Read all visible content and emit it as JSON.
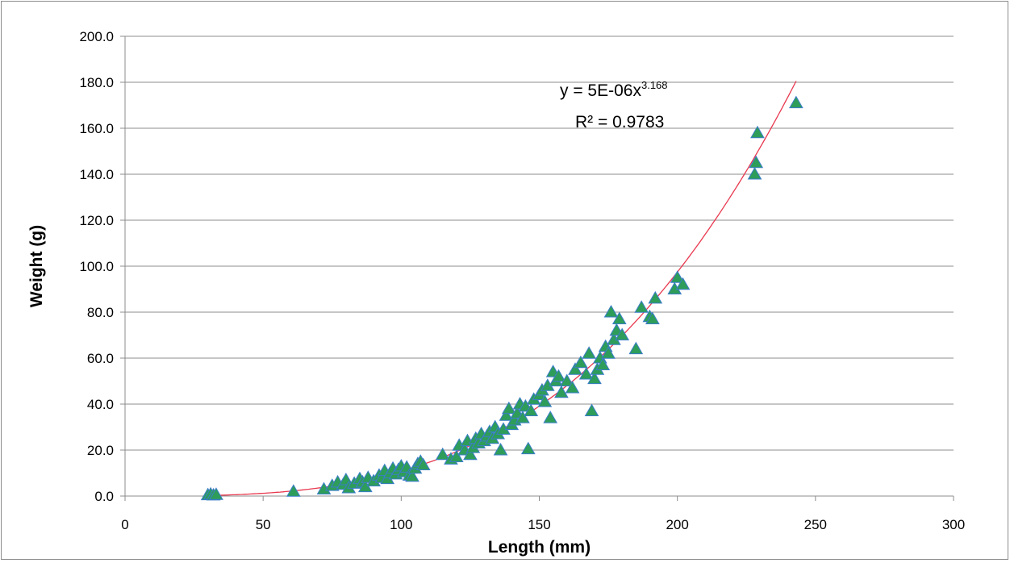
{
  "chart_data": {
    "type": "scatter",
    "title": "",
    "xlabel": "Length (mm)",
    "ylabel": "Weight (g)",
    "xlim": [
      0,
      300
    ],
    "ylim": [
      0,
      200
    ],
    "x_ticks": [
      "0",
      "50",
      "100",
      "150",
      "200",
      "250",
      "300"
    ],
    "y_ticks": [
      "0.0",
      "20.0",
      "40.0",
      "60.0",
      "80.0",
      "100.0",
      "120.0",
      "140.0",
      "160.0",
      "180.0",
      "200.0"
    ],
    "grid": "horizontal",
    "marker": "triangle",
    "colors": {
      "marker_fill": "#2e9d5a",
      "marker_edge": "#3a7dc9",
      "trendline": "#e8384f",
      "grid": "#8c8c8c"
    },
    "trendline": {
      "type": "power",
      "a": 5e-06,
      "b": 3.168,
      "x_range": [
        33,
        243
      ],
      "equation_text": "y = 5E-06x",
      "equation_exponent": "3.168",
      "r2_text": "R² = 0.9783"
    },
    "points": [
      [
        30,
        0.5
      ],
      [
        31,
        0.8
      ],
      [
        32,
        0.4
      ],
      [
        33,
        0.6
      ],
      [
        61,
        2.0
      ],
      [
        72,
        3.0
      ],
      [
        75,
        4.5
      ],
      [
        77,
        6.0
      ],
      [
        79,
        5.0
      ],
      [
        80,
        7.0
      ],
      [
        81,
        3.5
      ],
      [
        83,
        5.5
      ],
      [
        85,
        7.5
      ],
      [
        86,
        6.0
      ],
      [
        87,
        4.0
      ],
      [
        88,
        8.0
      ],
      [
        90,
        6.5
      ],
      [
        92,
        9.0
      ],
      [
        93,
        8.0
      ],
      [
        94,
        11.0
      ],
      [
        95,
        7.5
      ],
      [
        96,
        10.0
      ],
      [
        97,
        12.0
      ],
      [
        98,
        9.5
      ],
      [
        99,
        11.5
      ],
      [
        100,
        13.0
      ],
      [
        101,
        10.5
      ],
      [
        102,
        12.5
      ],
      [
        103,
        9.0
      ],
      [
        104,
        8.5
      ],
      [
        105,
        12.0
      ],
      [
        106,
        14.0
      ],
      [
        107,
        15.0
      ],
      [
        108,
        13.5
      ],
      [
        115,
        18.0
      ],
      [
        118,
        16.0
      ],
      [
        120,
        17.0
      ],
      [
        121,
        22.0
      ],
      [
        123,
        20.0
      ],
      [
        124,
        24.0
      ],
      [
        125,
        18.0
      ],
      [
        126,
        21.0
      ],
      [
        127,
        25.0
      ],
      [
        128,
        23.0
      ],
      [
        129,
        27.0
      ],
      [
        130,
        24.0
      ],
      [
        131,
        26.0
      ],
      [
        132,
        28.0
      ],
      [
        133,
        25.0
      ],
      [
        134,
        30.0
      ],
      [
        135,
        27.0
      ],
      [
        136,
        20.0
      ],
      [
        137,
        29.0
      ],
      [
        138,
        35.0
      ],
      [
        139,
        38.0
      ],
      [
        140,
        31.0
      ],
      [
        141,
        33.0
      ],
      [
        142,
        36.0
      ],
      [
        143,
        40.0
      ],
      [
        144,
        34.0
      ],
      [
        145,
        39.0
      ],
      [
        146,
        20.5
      ],
      [
        147,
        37.0
      ],
      [
        148,
        42.0
      ],
      [
        150,
        44.0
      ],
      [
        151,
        46.0
      ],
      [
        152,
        41.0
      ],
      [
        153,
        48.0
      ],
      [
        154,
        34.0
      ],
      [
        155,
        54.0
      ],
      [
        156,
        50.0
      ],
      [
        157,
        52.0
      ],
      [
        158,
        45.0
      ],
      [
        160,
        50.0
      ],
      [
        162,
        47.0
      ],
      [
        163,
        55.0
      ],
      [
        165,
        58.0
      ],
      [
        167,
        53.0
      ],
      [
        168,
        62.0
      ],
      [
        169,
        37.0
      ],
      [
        170,
        51.0
      ],
      [
        171,
        55.0
      ],
      [
        172,
        60.0
      ],
      [
        173,
        57.0
      ],
      [
        174,
        65.0
      ],
      [
        175,
        62.0
      ],
      [
        176,
        80.0
      ],
      [
        177,
        68.0
      ],
      [
        178,
        72.0
      ],
      [
        179,
        77.0
      ],
      [
        180,
        70.0
      ],
      [
        185,
        64.0
      ],
      [
        187,
        82.0
      ],
      [
        190,
        78.0
      ],
      [
        191,
        77.0
      ],
      [
        192,
        86.0
      ],
      [
        199,
        90.0
      ],
      [
        200,
        95.0
      ],
      [
        202,
        92.0
      ],
      [
        228,
        140.0
      ],
      [
        228.5,
        145.0
      ],
      [
        229,
        158.0
      ],
      [
        243,
        171.0
      ]
    ]
  }
}
